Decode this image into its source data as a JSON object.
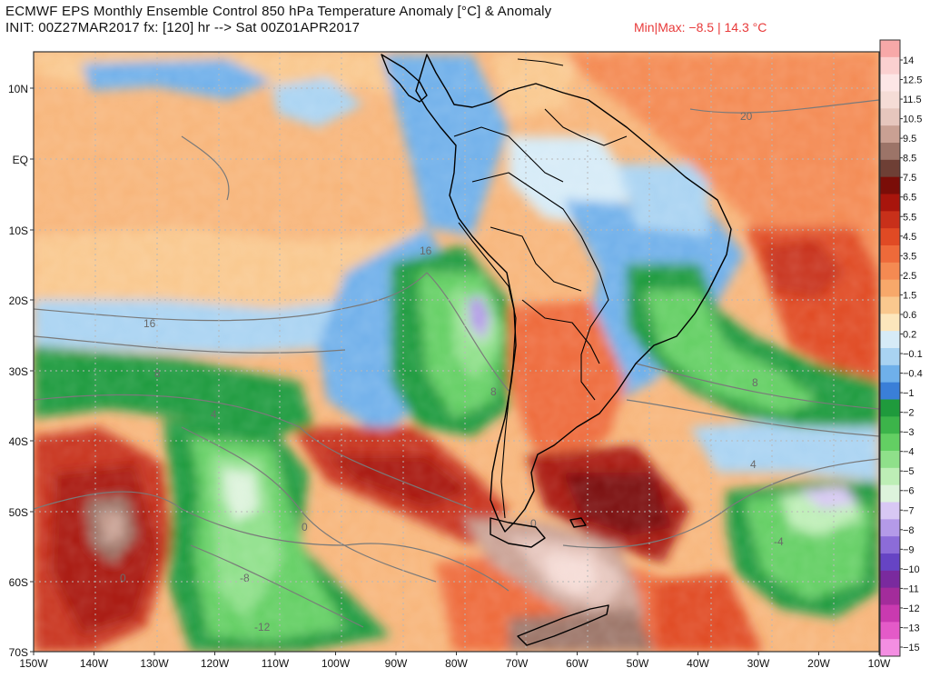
{
  "header": {
    "title": "ECMWF EPS Monthly Ensemble Control 850 hPa Temperature Anomaly [°C] & Anomaly",
    "init_line": "INIT: 00Z27MAR2017  fx: [120] hr --> Sat 00Z01APR2017",
    "minmax": "Min|Max: −8.5 | 14.3 °C"
  },
  "axes": {
    "lat_labels": [
      "10N",
      "EQ",
      "10S",
      "20S",
      "30S",
      "40S",
      "50S",
      "60S",
      "70S"
    ],
    "lon_labels": [
      "150W",
      "140W",
      "130W",
      "120W",
      "110W",
      "100W",
      "90W",
      "80W",
      "70W",
      "60W",
      "50W",
      "40W",
      "30W",
      "20W",
      "10W"
    ]
  },
  "colorbar": {
    "labels": [
      "14",
      "12.5",
      "11.5",
      "10.5",
      "9.5",
      "8.5",
      "7.5",
      "6.5",
      "5.5",
      "4.5",
      "3.5",
      "2.5",
      "1.5",
      "0.6",
      "0.2",
      "−0.1",
      "−0.4",
      "−1",
      "−2",
      "−3",
      "−4",
      "−5",
      "−6",
      "−7",
      "−8",
      "−9",
      "−10",
      "−11",
      "−12",
      "−13",
      "−15"
    ],
    "colors": [
      "#f7a8a8",
      "#fbd0d0",
      "#fde6e6",
      "#f5dcd6",
      "#e6c6bd",
      "#c9a093",
      "#9c7468",
      "#6e3f35",
      "#7a0d08",
      "#a8150c",
      "#c8301a",
      "#e04a24",
      "#ee6a3a",
      "#f48a52",
      "#f7a86a",
      "#f9c88e",
      "#fce6bc",
      "#d6ebf7",
      "#a9d3f2",
      "#6fb0ea",
      "#3a7fd8",
      "#1f9a3c",
      "#3cb44a",
      "#63cf63",
      "#8fe08a",
      "#bdeeb6",
      "#ddf3dc",
      "#d8c8f4",
      "#b49ae8",
      "#8c6cd8",
      "#6644c4",
      "#7a2a9e",
      "#a32c9b",
      "#c93ab0",
      "#e45ac8",
      "#f48ee2"
    ]
  },
  "contour_labels": [
    "20",
    "16",
    "16",
    "8",
    "8",
    "8",
    "4",
    "4",
    "0",
    "0",
    "0",
    "-4",
    "-8",
    "-12"
  ]
}
